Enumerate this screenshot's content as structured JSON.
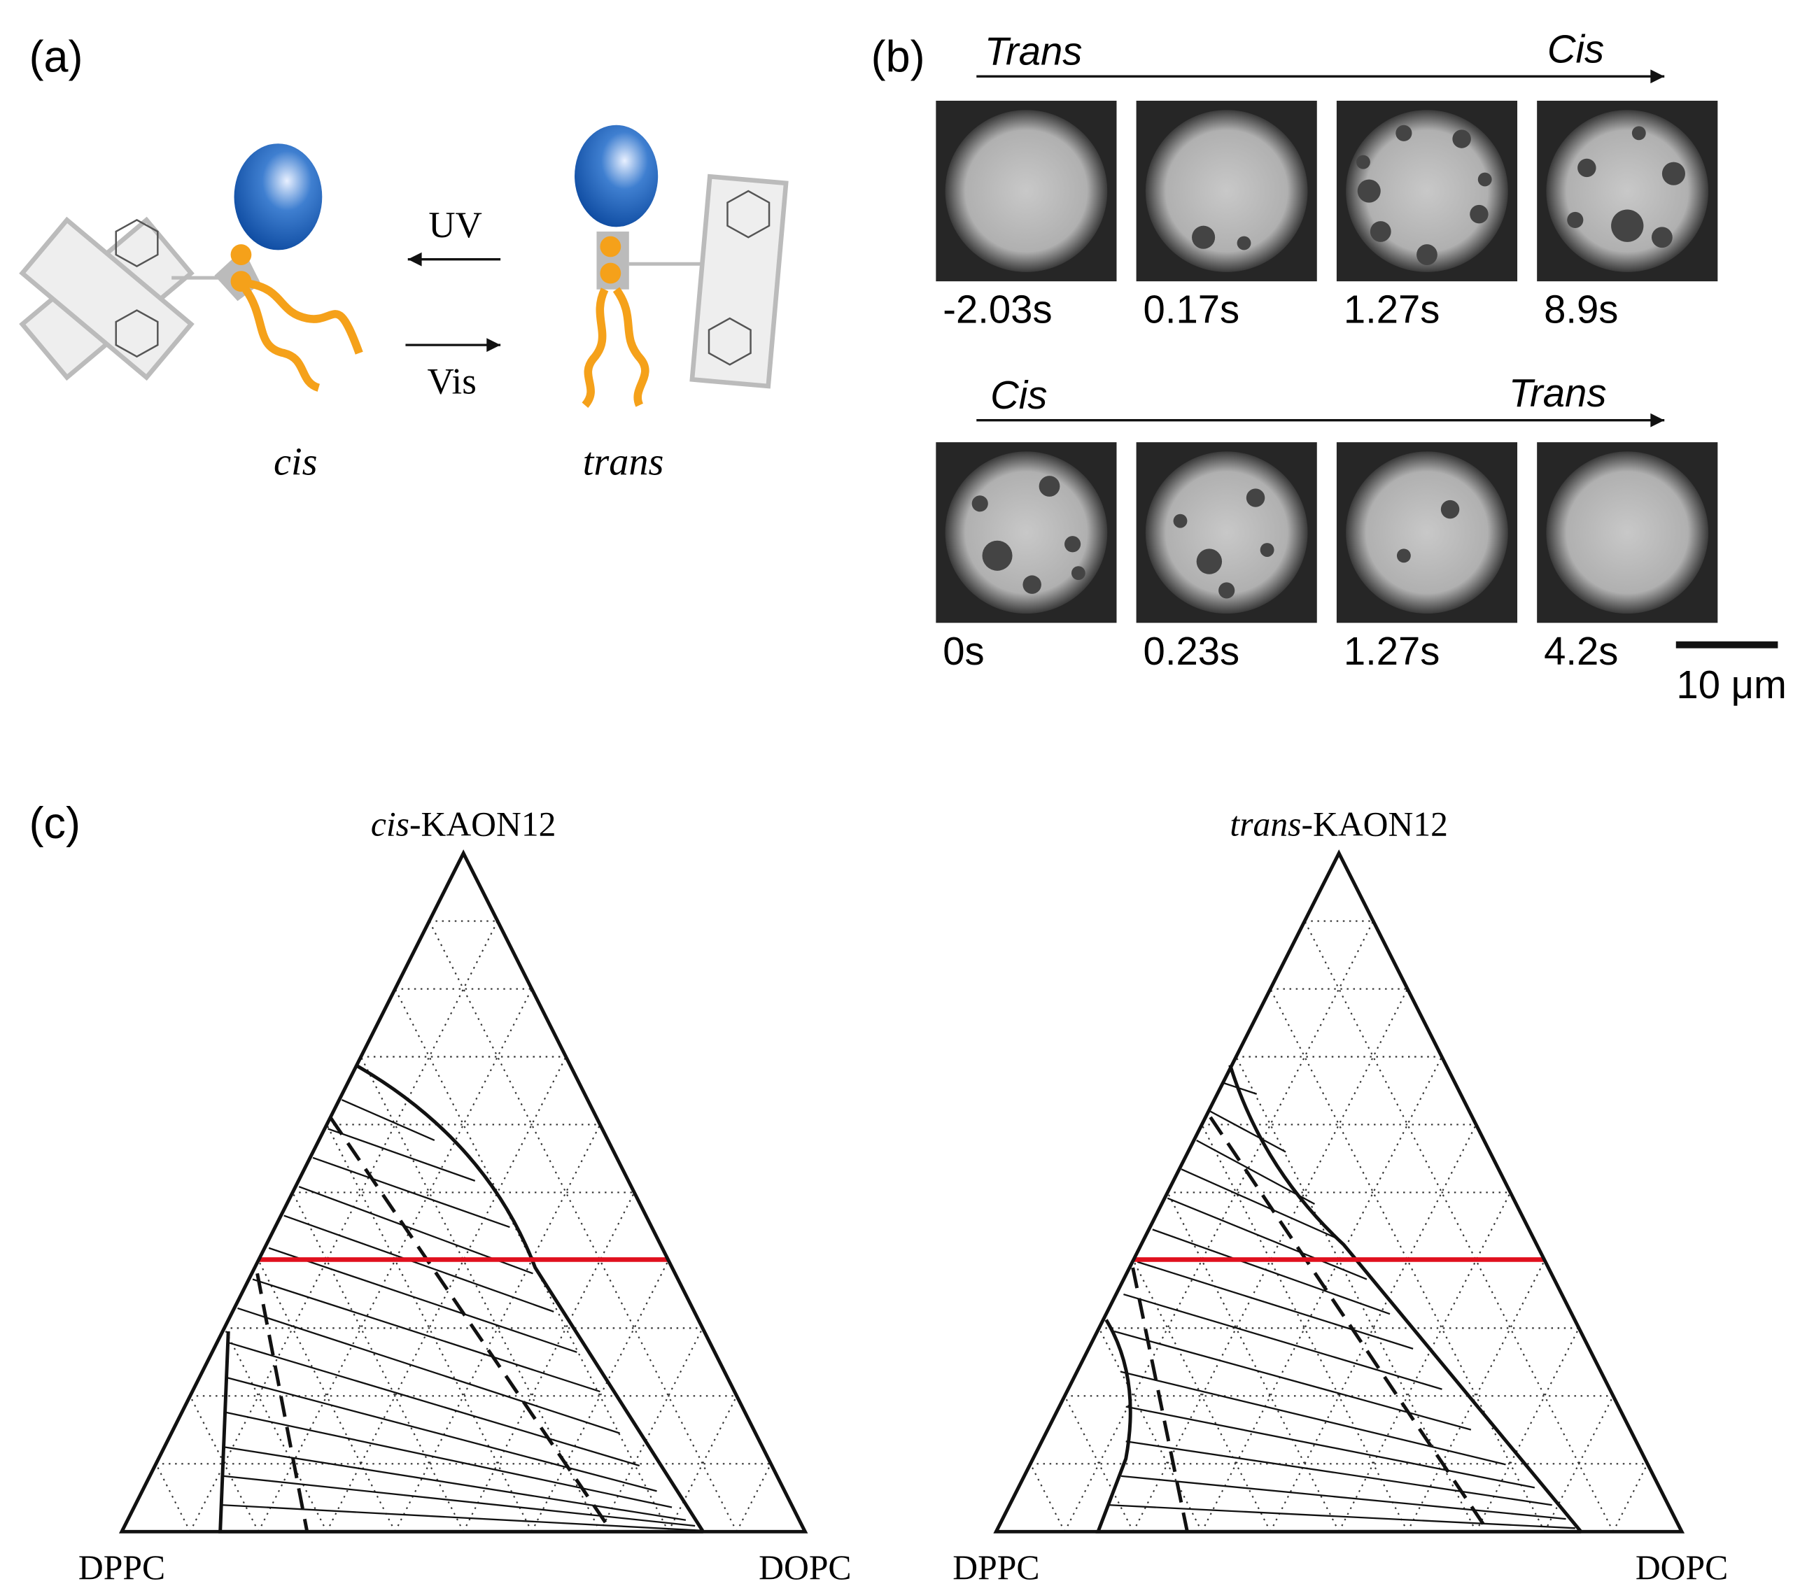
{
  "panel_a": {
    "label": "(a)",
    "forward": "UV",
    "backward": "Vis",
    "cis": "cis",
    "trans": "trans"
  },
  "panel_b": {
    "label": "(b)",
    "rows": [
      {
        "from": "Trans",
        "to": "Cis",
        "times": [
          "-2.03s",
          "0.17s",
          "1.27s",
          "8.9s"
        ]
      },
      {
        "from": "Cis",
        "to": "Trans",
        "times": [
          "0s",
          "0.23s",
          "1.27s",
          "4.2s"
        ]
      }
    ],
    "scale_bar": "10 μm"
  },
  "panel_c": {
    "label": "(c)",
    "diagrams": [
      {
        "apex_prefix": "cis",
        "apex_suffix": "-KAON12",
        "left": "DPPC",
        "right": "DOPC"
      },
      {
        "apex_prefix": "trans",
        "apex_suffix": "-KAON12",
        "left": "DPPC",
        "right": "DOPC"
      }
    ]
  }
}
